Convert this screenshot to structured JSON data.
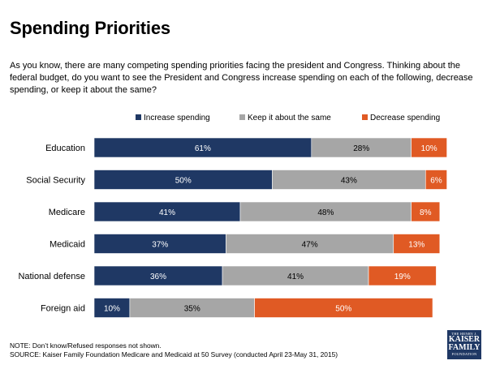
{
  "page": {
    "title": "Spending Priorities",
    "question": "As you know, there are many competing spending priorities facing the president and Congress.  Thinking about the federal budget, do you want to see the President and Congress increase spending on each of the following, decrease spending, or keep it about the same?",
    "note": "NOTE: Don’t know/Refused responses not shown.",
    "source": "SOURCE: Kaiser Family Foundation Medicare and Medicaid at 50 Survey (conducted April 23-May 31, 2015)",
    "logo": {
      "line1": "THE HENRY J.",
      "line2a": "KAISER",
      "line2b": "FAMILY",
      "line3": "FOUNDATION"
    }
  },
  "chart_data": {
    "type": "bar",
    "orientation": "horizontal",
    "stacked": true,
    "categories": [
      "Education",
      "Social Security",
      "Medicare",
      "Medicaid",
      "National defense",
      "Foreign aid"
    ],
    "series": [
      {
        "name": "Increase spending",
        "color": "#1f3864",
        "label_color": "#ffffff",
        "values": [
          61,
          50,
          41,
          37,
          36,
          10
        ]
      },
      {
        "name": "Keep it about the same",
        "color": "#a6a6a6",
        "label_color": "#000000",
        "values": [
          28,
          43,
          48,
          47,
          41,
          35
        ]
      },
      {
        "name": "Decrease spending",
        "color": "#e05a24",
        "label_color": "#ffffff",
        "values": [
          10,
          6,
          8,
          13,
          19,
          50
        ]
      }
    ],
    "value_suffix": "%",
    "xlim": [
      0,
      100
    ],
    "legend_position": "top",
    "grid": false
  }
}
